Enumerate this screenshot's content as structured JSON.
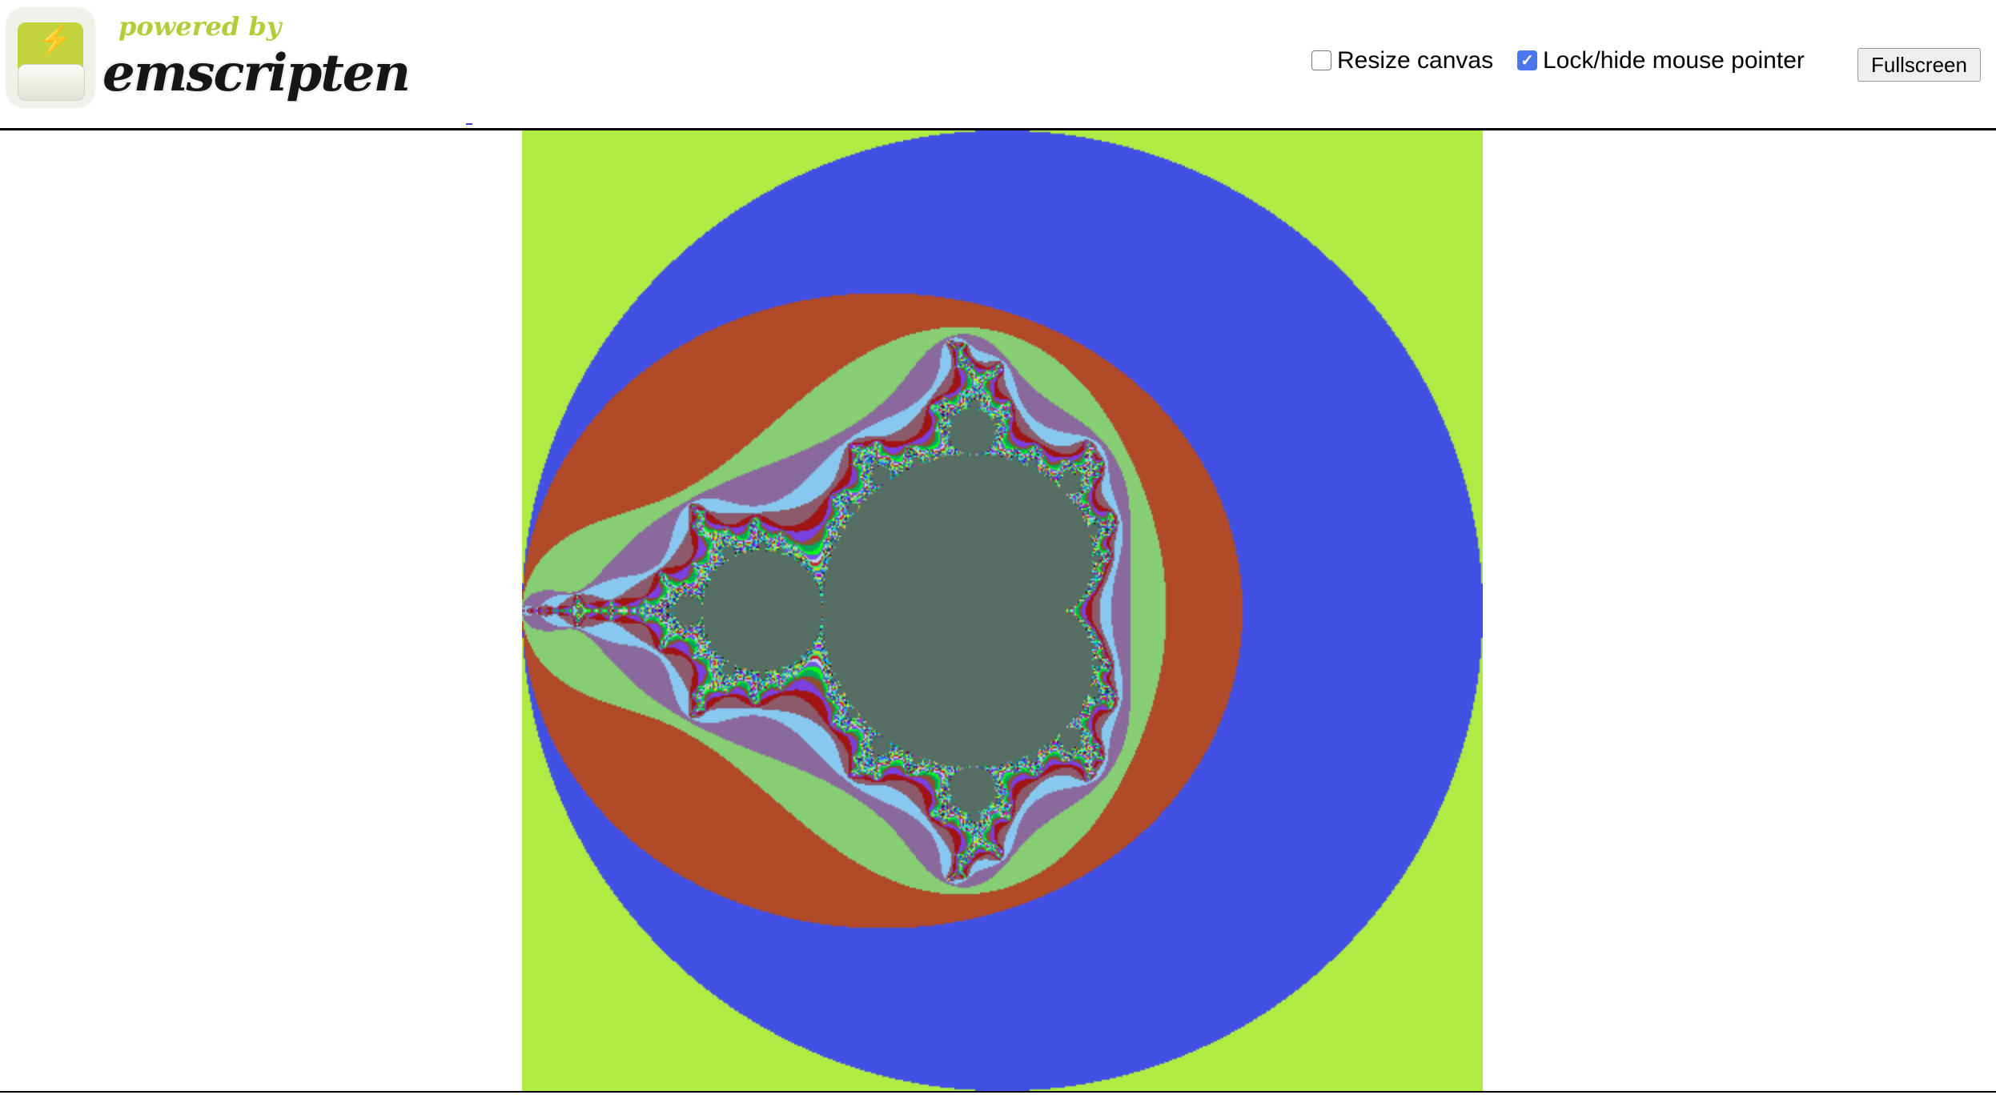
{
  "logo": {
    "powered_by": "powered by",
    "name": "emscripten"
  },
  "controls": {
    "resize_canvas": {
      "label": "Resize canvas",
      "checked": false
    },
    "lock_pointer": {
      "label": "Lock/hide mouse pointer",
      "checked": true
    },
    "fullscreen_label": "Fullscreen"
  },
  "canvas": {
    "content": "Mandelbrot set",
    "view": {
      "re": [
        -2,
        2
      ],
      "im": [
        -2,
        2
      ]
    },
    "colors": {
      "outside": "#b0eb44",
      "inside": "#566e64",
      "bands": [
        "#8c63c4",
        "#4251e4",
        "#b04a28",
        "#86cd74",
        "#8a6a9c",
        "#88c8f0",
        "#8c5a6a",
        "#a01414",
        "#7a40e0",
        "#8a5030"
      ]
    }
  }
}
